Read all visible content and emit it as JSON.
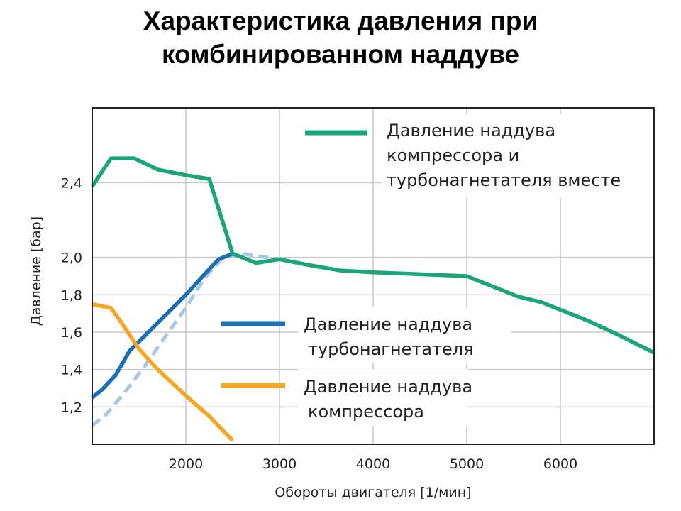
{
  "title_lines": [
    "Характеристика давления при",
    "комбинированном наддуве"
  ],
  "chart_data": {
    "type": "line",
    "xlabel": "Обороты двигателя [1/мин]",
    "ylabel": "Давление [бар]",
    "xlim": [
      1000,
      7000
    ],
    "ylim": [
      1.0,
      2.8
    ],
    "x_ticks": [
      2000,
      3000,
      4000,
      5000,
      6000
    ],
    "x_tick_labels": [
      "2000",
      "3000",
      "4000",
      "5000",
      "6000"
    ],
    "y_ticks": [
      1.2,
      1.4,
      1.6,
      1.8,
      2.0,
      2.4
    ],
    "y_tick_labels": [
      "1,2",
      "1,4",
      "1,6",
      "1,8",
      "2,0",
      "2,4"
    ],
    "grid": true,
    "series": [
      {
        "name": "Давление наддува компрессора и турбонагнетателя вместе",
        "legend_lines": [
          "Давление наддува",
          "компрессора и",
          "турбонагнетателя вместе"
        ],
        "color": "#1aa57a",
        "style": "solid",
        "points": [
          [
            1000,
            2.38
          ],
          [
            1200,
            2.53
          ],
          [
            1450,
            2.53
          ],
          [
            1700,
            2.47
          ],
          [
            2000,
            2.44
          ],
          [
            2250,
            2.42
          ],
          [
            2500,
            2.02
          ],
          [
            2750,
            1.97
          ],
          [
            3000,
            1.99
          ],
          [
            3300,
            1.96
          ],
          [
            3650,
            1.93
          ],
          [
            4000,
            1.92
          ],
          [
            5000,
            1.9
          ],
          [
            5550,
            1.79
          ],
          [
            5800,
            1.76
          ],
          [
            6300,
            1.66
          ],
          [
            6600,
            1.59
          ],
          [
            7000,
            1.49
          ]
        ]
      },
      {
        "name": "Давление наддува турбонагнетателя",
        "legend_lines": [
          "Давление наддува",
          "турбонагнетателя"
        ],
        "color": "#1a6fb5",
        "style": "solid",
        "points": [
          [
            1000,
            1.25
          ],
          [
            1100,
            1.29
          ],
          [
            1250,
            1.37
          ],
          [
            1400,
            1.5
          ],
          [
            1600,
            1.6
          ],
          [
            1800,
            1.7
          ],
          [
            2000,
            1.8
          ],
          [
            2200,
            1.91
          ],
          [
            2350,
            1.99
          ],
          [
            2500,
            2.02
          ]
        ]
      },
      {
        "name": "",
        "color": "#a8c7e6",
        "style": "dashed",
        "points": [
          [
            1000,
            1.1
          ],
          [
            1150,
            1.16
          ],
          [
            1350,
            1.28
          ],
          [
            1550,
            1.41
          ],
          [
            1800,
            1.59
          ],
          [
            2000,
            1.73
          ],
          [
            2200,
            1.89
          ],
          [
            2400,
            2.0
          ],
          [
            2600,
            2.02
          ],
          [
            3000,
            1.99
          ]
        ]
      },
      {
        "name": "Давление наддува компрессора",
        "legend_lines": [
          "Давление наддува",
          "компрессора"
        ],
        "color": "#f5a623",
        "style": "solid",
        "points": [
          [
            1000,
            1.75
          ],
          [
            1200,
            1.73
          ],
          [
            1300,
            1.66
          ],
          [
            1500,
            1.51
          ],
          [
            1700,
            1.4
          ],
          [
            2000,
            1.26
          ],
          [
            2250,
            1.15
          ],
          [
            2500,
            1.02
          ]
        ]
      }
    ]
  }
}
